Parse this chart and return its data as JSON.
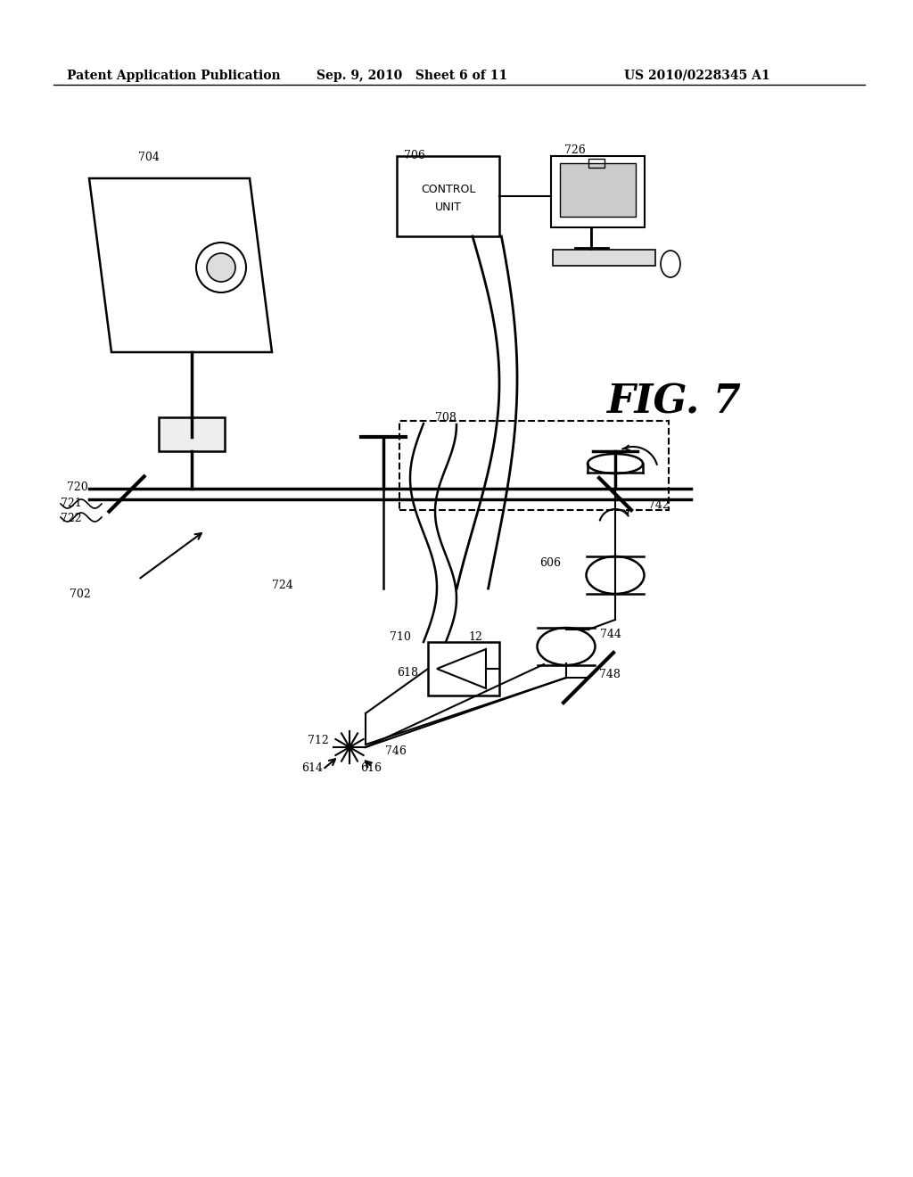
{
  "background": "#ffffff",
  "header_left": "Patent Application Publication",
  "header_mid": "Sep. 9, 2010   Sheet 6 of 11",
  "header_right": "US 2010/0228345 A1",
  "fig_label": "FIG. 7"
}
